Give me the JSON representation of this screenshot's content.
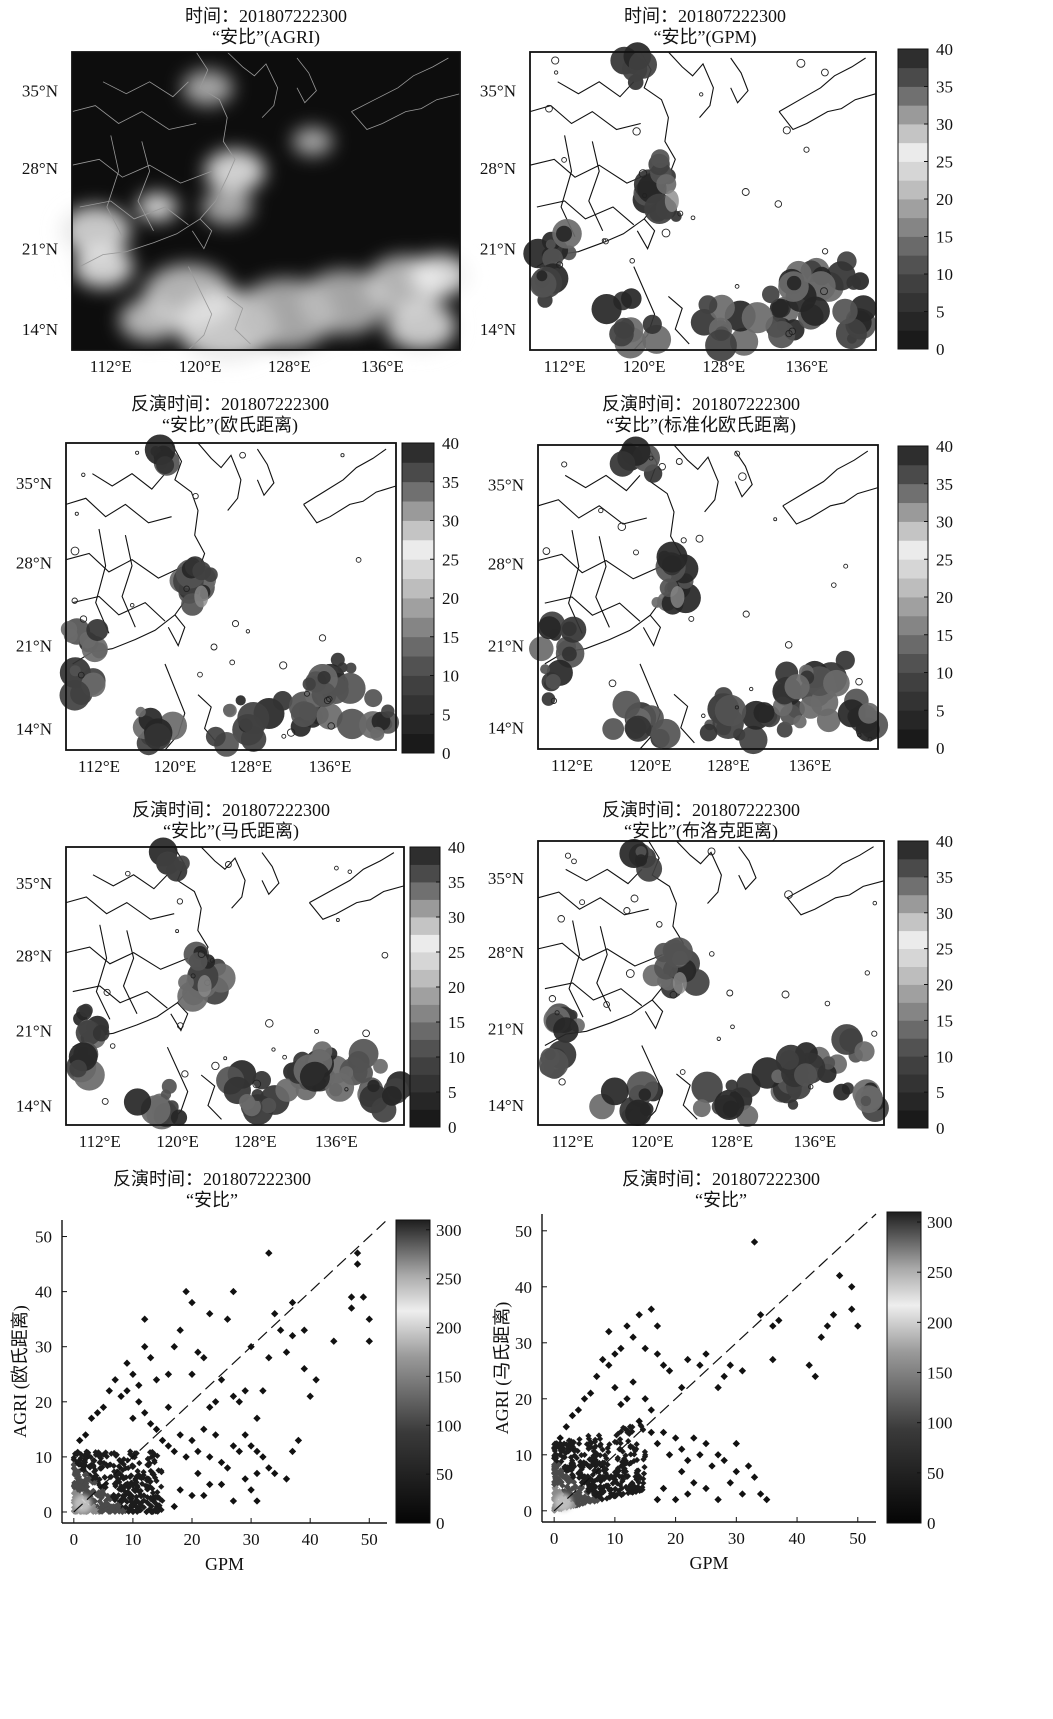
{
  "colorbar_labels": [
    "0",
    "5",
    "10",
    "15",
    "20",
    "25",
    "30",
    "35",
    "40"
  ],
  "scatter_colorbar_labels": [
    "0",
    "50",
    "100",
    "150",
    "200",
    "250",
    "300"
  ],
  "panels": [
    {
      "line1": "时间：201807222300",
      "line2": "“安比”(AGRI)",
      "kind": "ir",
      "colorbar": false
    },
    {
      "line1": "时间：201807222300",
      "line2": "“安比”(GPM)",
      "kind": "rain",
      "colorbar": true
    },
    {
      "line1": "反演时间：201807222300",
      "line2": "“安比”(欧氏距离)",
      "kind": "rain",
      "colorbar": true
    },
    {
      "line1": "反演时间：201807222300",
      "line2": "“安比”(标准化欧氏距离)",
      "kind": "rain",
      "colorbar": true
    },
    {
      "line1": "反演时间：201807222300",
      "line2": "“安比”(马氏距离)",
      "kind": "rain",
      "colorbar": true
    },
    {
      "line1": "反演时间：201807222300",
      "line2": "“安比”(布洛克距离)",
      "kind": "rain",
      "colorbar": true
    }
  ],
  "chart_data": [
    {
      "type": "heatmap",
      "title": "时间：201807222300 “安比”(AGRI)",
      "x_ticks": [
        "112°E",
        "120°E",
        "128°E",
        "136°E"
      ],
      "y_ticks": [
        "14°N",
        "21°N",
        "28°N",
        "35°N"
      ]
    },
    {
      "type": "heatmap",
      "title": "时间：201807222300 “安比”(GPM)",
      "x_ticks": [
        "112°E",
        "120°E",
        "128°E",
        "136°E"
      ],
      "y_ticks": [
        "14°N",
        "21°N",
        "28°N",
        "35°N"
      ],
      "colorbar": {
        "min": 0,
        "max": 40,
        "ticks": [
          0,
          5,
          10,
          15,
          20,
          25,
          30,
          35,
          40
        ]
      }
    },
    {
      "type": "heatmap",
      "title": "反演时间：201807222300 “安比”(欧氏距离)",
      "x_ticks": [
        "112°E",
        "120°E",
        "128°E",
        "136°E"
      ],
      "y_ticks": [
        "14°N",
        "21°N",
        "28°N",
        "35°N"
      ],
      "colorbar": {
        "min": 0,
        "max": 40,
        "ticks": [
          0,
          5,
          10,
          15,
          20,
          25,
          30,
          35,
          40
        ]
      }
    },
    {
      "type": "heatmap",
      "title": "反演时间：201807222300 “安比”(标准化欧氏距离)",
      "x_ticks": [
        "112°E",
        "120°E",
        "128°E",
        "136°E"
      ],
      "y_ticks": [
        "14°N",
        "21°N",
        "28°N",
        "35°N"
      ],
      "colorbar": {
        "min": 0,
        "max": 40,
        "ticks": [
          0,
          5,
          10,
          15,
          20,
          25,
          30,
          35,
          40
        ]
      }
    },
    {
      "type": "heatmap",
      "title": "反演时间：201807222300 “安比”(马氏距离)",
      "x_ticks": [
        "112°E",
        "120°E",
        "128°E",
        "136°E"
      ],
      "y_ticks": [
        "14°N",
        "21°N",
        "28°N",
        "35°N"
      ],
      "colorbar": {
        "min": 0,
        "max": 40,
        "ticks": [
          0,
          5,
          10,
          15,
          20,
          25,
          30,
          35,
          40
        ]
      }
    },
    {
      "type": "heatmap",
      "title": "反演时间：201807222300 “安比”(布洛克距离)",
      "x_ticks": [
        "112°E",
        "120°E",
        "128°E",
        "136°E"
      ],
      "y_ticks": [
        "14°N",
        "21°N",
        "28°N",
        "35°N"
      ],
      "colorbar": {
        "min": 0,
        "max": 40,
        "ticks": [
          0,
          5,
          10,
          15,
          20,
          25,
          30,
          35,
          40
        ]
      }
    },
    {
      "type": "scatter",
      "title_line1": "反演时间：201807222300",
      "title_line2": "“安比”",
      "xlabel": "GPM",
      "ylabel": "AGRI (欧氏距离)",
      "xlim": [
        -2,
        53
      ],
      "ylim": [
        -2,
        53
      ],
      "x_ticks": [
        0,
        10,
        20,
        30,
        40,
        50
      ],
      "y_ticks": [
        0,
        10,
        20,
        30,
        40,
        50
      ],
      "colorbar": {
        "min": 0,
        "max": 310,
        "ticks": [
          0,
          50,
          100,
          150,
          200,
          250,
          300
        ]
      },
      "points": [
        [
          33,
          47
        ],
        [
          48,
          47
        ],
        [
          48,
          45
        ],
        [
          49,
          39
        ],
        [
          50,
          35
        ],
        [
          50,
          31
        ],
        [
          47,
          39
        ],
        [
          47,
          37
        ],
        [
          44,
          31
        ],
        [
          41,
          24
        ],
        [
          39,
          33
        ],
        [
          37,
          38
        ],
        [
          37,
          32
        ],
        [
          34,
          36
        ],
        [
          35,
          33
        ],
        [
          33,
          28
        ],
        [
          32,
          22
        ],
        [
          30,
          30
        ],
        [
          29,
          22
        ],
        [
          31,
          17
        ],
        [
          29,
          14
        ],
        [
          30,
          12
        ],
        [
          31,
          11
        ],
        [
          32,
          10
        ],
        [
          33,
          8
        ],
        [
          34,
          7
        ],
        [
          31,
          7
        ],
        [
          36,
          6
        ],
        [
          38,
          13
        ],
        [
          37,
          11
        ],
        [
          39,
          26
        ],
        [
          40,
          21
        ],
        [
          36,
          29
        ],
        [
          28,
          20
        ],
        [
          27,
          40
        ],
        [
          26,
          35
        ],
        [
          25,
          24
        ],
        [
          27,
          21
        ],
        [
          24,
          20
        ],
        [
          22,
          28
        ],
        [
          23,
          36
        ],
        [
          23,
          19
        ],
        [
          21,
          29
        ],
        [
          20,
          25
        ],
        [
          20,
          38
        ],
        [
          19,
          40
        ],
        [
          18,
          33
        ],
        [
          17,
          30
        ],
        [
          16,
          25
        ],
        [
          16,
          19
        ],
        [
          14,
          24
        ],
        [
          13,
          28
        ],
        [
          12,
          35
        ],
        [
          12,
          30
        ],
        [
          11,
          23
        ],
        [
          11,
          20
        ],
        [
          10,
          25
        ],
        [
          9,
          27
        ],
        [
          9,
          22
        ],
        [
          8,
          21
        ],
        [
          7,
          24
        ],
        [
          6,
          22
        ],
        [
          5,
          19
        ],
        [
          4,
          18
        ],
        [
          3,
          17
        ],
        [
          2,
          14
        ],
        [
          1,
          13
        ],
        [
          14,
          15
        ],
        [
          15,
          13
        ],
        [
          16,
          12
        ],
        [
          17,
          11
        ],
        [
          18,
          14
        ],
        [
          19,
          10
        ],
        [
          20,
          13
        ],
        [
          21,
          11
        ],
        [
          22,
          15
        ],
        [
          24,
          14
        ],
        [
          25,
          9
        ],
        [
          26,
          8
        ],
        [
          27,
          12
        ],
        [
          28,
          11
        ],
        [
          29,
          6
        ],
        [
          30,
          4
        ],
        [
          31,
          2
        ],
        [
          27,
          2
        ],
        [
          25,
          5
        ],
        [
          23,
          5
        ],
        [
          22,
          3
        ],
        [
          20,
          3
        ],
        [
          18,
          4
        ],
        [
          17,
          1
        ],
        [
          21,
          7
        ],
        [
          23,
          10
        ],
        [
          12,
          18
        ],
        [
          13,
          16
        ],
        [
          10,
          17
        ]
      ]
    },
    {
      "type": "scatter",
      "title_line1": "反演时间：201807222300",
      "title_line2": "“安比”",
      "xlabel": "GPM",
      "ylabel": "AGRI (马氏距离)",
      "xlim": [
        -2,
        53
      ],
      "ylim": [
        -2,
        53
      ],
      "x_ticks": [
        0,
        10,
        20,
        30,
        40,
        50
      ],
      "y_ticks": [
        0,
        10,
        20,
        30,
        40,
        50
      ],
      "colorbar": {
        "min": 0,
        "max": 310,
        "ticks": [
          0,
          50,
          100,
          150,
          200,
          250,
          300
        ]
      },
      "points": [
        [
          33,
          48
        ],
        [
          47,
          42
        ],
        [
          49,
          40
        ],
        [
          49,
          36
        ],
        [
          50,
          33
        ],
        [
          46,
          35
        ],
        [
          45,
          33
        ],
        [
          44,
          31
        ],
        [
          42,
          26
        ],
        [
          43,
          24
        ],
        [
          37,
          34
        ],
        [
          36,
          33
        ],
        [
          36,
          27
        ],
        [
          34,
          35
        ],
        [
          31,
          25
        ],
        [
          29,
          26
        ],
        [
          28,
          24
        ],
        [
          27,
          22
        ],
        [
          25,
          28
        ],
        [
          24,
          26
        ],
        [
          22,
          27
        ],
        [
          21,
          22
        ],
        [
          19,
          25
        ],
        [
          18,
          26
        ],
        [
          17,
          33
        ],
        [
          17,
          28
        ],
        [
          16,
          36
        ],
        [
          15,
          29
        ],
        [
          14,
          35
        ],
        [
          13,
          31
        ],
        [
          12,
          33
        ],
        [
          11,
          29
        ],
        [
          10,
          28
        ],
        [
          9,
          32
        ],
        [
          9,
          26
        ],
        [
          8,
          27
        ],
        [
          7,
          24
        ],
        [
          6,
          21
        ],
        [
          5,
          20
        ],
        [
          4,
          18
        ],
        [
          3,
          17
        ],
        [
          2,
          15
        ],
        [
          1,
          13
        ],
        [
          15,
          20
        ],
        [
          16,
          18
        ],
        [
          14,
          16
        ],
        [
          16,
          14
        ],
        [
          17,
          12
        ],
        [
          18,
          14
        ],
        [
          19,
          10
        ],
        [
          20,
          13
        ],
        [
          21,
          11
        ],
        [
          22,
          9
        ],
        [
          23,
          13
        ],
        [
          24,
          10
        ],
        [
          25,
          12
        ],
        [
          26,
          8
        ],
        [
          27,
          10
        ],
        [
          28,
          9
        ],
        [
          29,
          5
        ],
        [
          30,
          7
        ],
        [
          31,
          3
        ],
        [
          32,
          8
        ],
        [
          33,
          6
        ],
        [
          34,
          3
        ],
        [
          35,
          2
        ],
        [
          30,
          12
        ],
        [
          27,
          2
        ],
        [
          25,
          4
        ],
        [
          23,
          5
        ],
        [
          22,
          3
        ],
        [
          20,
          2
        ],
        [
          18,
          4
        ],
        [
          17,
          2
        ],
        [
          21,
          7
        ],
        [
          12,
          20
        ],
        [
          13,
          23
        ],
        [
          11,
          19
        ],
        [
          10,
          22
        ]
      ]
    }
  ]
}
